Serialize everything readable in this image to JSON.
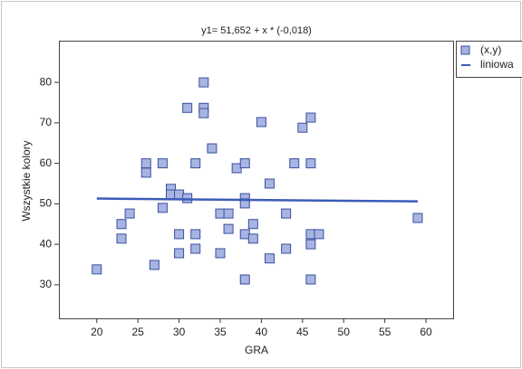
{
  "chart_data": {
    "type": "scatter",
    "title": "y1= 51,652 + x * (-0,018)",
    "x_label": "GRA",
    "y_label": "Wszystkie kolory",
    "xlim": [
      15.4,
      63.3
    ],
    "ylim": [
      21.7,
      90.3
    ],
    "xticks": [
      20,
      25,
      30,
      35,
      40,
      45,
      50,
      55,
      60
    ],
    "yticks": [
      30,
      40,
      50,
      60,
      70,
      80
    ],
    "legend": "right",
    "series": [
      {
        "name": "(x,y)",
        "type": "scatter",
        "color": "#a8b5e2",
        "edge_color": "#3a4f9e",
        "x": [
          20,
          23,
          23,
          24,
          26,
          26,
          27,
          28,
          28,
          29,
          29,
          30,
          30,
          30,
          31,
          31,
          32,
          32,
          32,
          33,
          33,
          33,
          34,
          35,
          35,
          36,
          36,
          37,
          38,
          38,
          38,
          38,
          38,
          39,
          39,
          40,
          41,
          41,
          43,
          43,
          44,
          45,
          46,
          46,
          46,
          46,
          46,
          47,
          59
        ],
        "values": [
          33.8,
          45,
          41.4,
          47.6,
          60,
          57.7,
          34.9,
          60,
          49,
          53.7,
          52.3,
          52.3,
          42.5,
          37.8,
          51.4,
          73.7,
          60,
          42.5,
          38.9,
          80,
          73.7,
          72.4,
          63.7,
          47.6,
          37.8,
          47.6,
          43.8,
          58.8,
          60,
          51.4,
          50.1,
          42.5,
          31.3,
          45,
          41.4,
          70.2,
          55,
          36.5,
          47.6,
          38.9,
          60,
          68.8,
          71.3,
          60,
          42.5,
          40,
          31.3,
          42.5,
          46.5
        ]
      },
      {
        "name": "liniowa",
        "type": "line",
        "color": "#3b5cb8",
        "x": [
          20,
          59
        ],
        "values": [
          51.3,
          50.6
        ]
      }
    ]
  }
}
